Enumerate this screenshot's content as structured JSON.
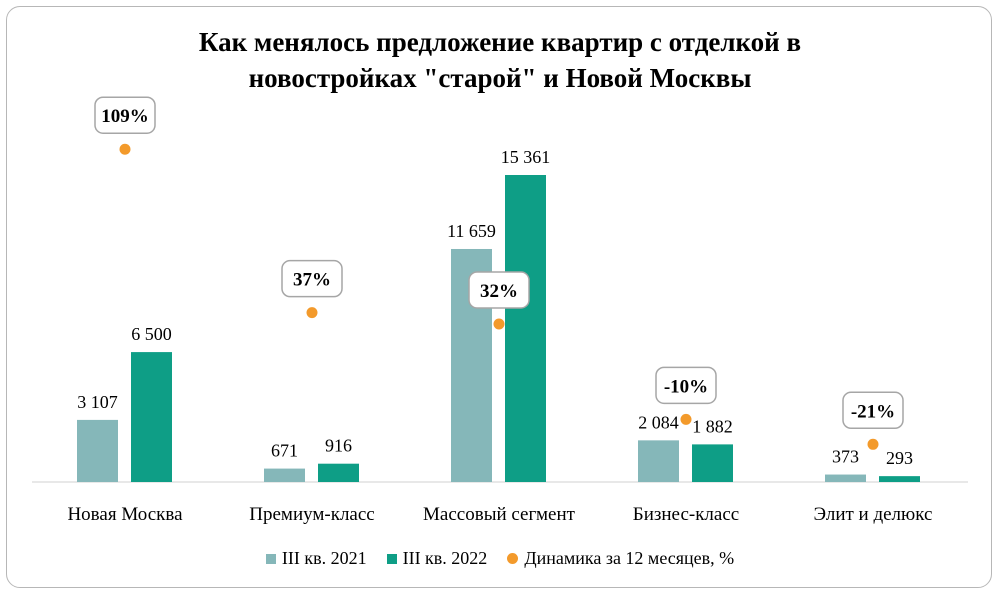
{
  "chart_data": {
    "type": "bar",
    "title_lines": [
      "Как менялось предложение квартир с отделкой в",
      "новостройках \"старой\" и Новой Москвы"
    ],
    "categories": [
      "Новая Москва",
      "Премиум-класс",
      "Массовый сегмент",
      "Бизнес-класс",
      "Элит и делюкс"
    ],
    "series": [
      {
        "name": "III кв. 2021",
        "values": [
          3107,
          671,
          11659,
          2084,
          373
        ],
        "labels": [
          "3 107",
          "671",
          "11 659",
          "2 084",
          "373"
        ],
        "color": "#85b7b9"
      },
      {
        "name": "III кв. 2022",
        "values": [
          6500,
          916,
          15361,
          1882,
          293
        ],
        "labels": [
          "6 500",
          "916",
          "15 361",
          "1 882",
          "293"
        ],
        "color": "#0e9e86"
      }
    ],
    "dynamics": {
      "name": "Динамика за 12 месяцев, %",
      "values": [
        109,
        37,
        32,
        -10,
        -21
      ],
      "labels": [
        "109%",
        "37%",
        "32%",
        "-10%",
        "-21%"
      ],
      "color": "#f39a2b"
    },
    "ylim": [
      0,
      17000
    ],
    "legend_position": "bottom",
    "grid": false
  }
}
